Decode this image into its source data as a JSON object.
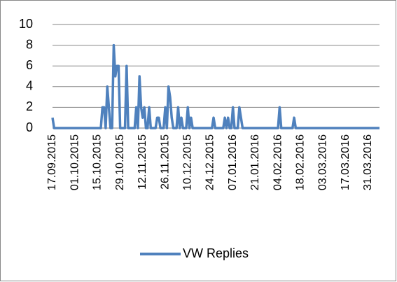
{
  "chart_data": {
    "type": "line",
    "categories": [
      "17.09.2015",
      null,
      null,
      null,
      null,
      null,
      null,
      null,
      null,
      null,
      null,
      null,
      null,
      null,
      "01.10.2015",
      null,
      null,
      null,
      null,
      null,
      null,
      null,
      null,
      null,
      null,
      null,
      null,
      null,
      "15.10.2015",
      null,
      null,
      null,
      null,
      null,
      null,
      null,
      null,
      null,
      null,
      null,
      null,
      null,
      "29.10.2015",
      null,
      null,
      null,
      null,
      null,
      null,
      null,
      null,
      null,
      null,
      null,
      null,
      null,
      "12.11.2015",
      null,
      null,
      null,
      null,
      null,
      null,
      null,
      null,
      null,
      null,
      null,
      null,
      null,
      "26.11.2015",
      null,
      null,
      null,
      null,
      null,
      null,
      null,
      null,
      null,
      null,
      null,
      null,
      null,
      "10.12.2015",
      null,
      null,
      null,
      null,
      null,
      null,
      null,
      null,
      null,
      null,
      null,
      null,
      null,
      "24.12.2015",
      null,
      null,
      null,
      null,
      null,
      null,
      null,
      null,
      null,
      null,
      null,
      null,
      null,
      "07.01.2016",
      null,
      null,
      null,
      null,
      null,
      null,
      null,
      null,
      null,
      null,
      null,
      null,
      null,
      "21.01.2016",
      null,
      null,
      null,
      null,
      null,
      null,
      null,
      null,
      null,
      null,
      null,
      null,
      null,
      "04.02.2016",
      null,
      null,
      null,
      null,
      null,
      null,
      null,
      null,
      null,
      null,
      null,
      null,
      null,
      "18.02.2016",
      null,
      null,
      null,
      null,
      null,
      null,
      null,
      null,
      null,
      null,
      null,
      null,
      null,
      "03.03.2016",
      null,
      null,
      null,
      null,
      null,
      null,
      null,
      null,
      null,
      null,
      null,
      null,
      null,
      "17.03.2016",
      null,
      null,
      null,
      null,
      null,
      null,
      null,
      null,
      null,
      null,
      null,
      null,
      null,
      "31.03.2016",
      null,
      null,
      null,
      null,
      null,
      null,
      null
    ],
    "series": [
      {
        "name": "VW Replies",
        "color": "#4f81bd",
        "values": [
          1,
          0,
          0,
          0,
          0,
          0,
          0,
          0,
          0,
          0,
          0,
          0,
          0,
          0,
          0,
          0,
          0,
          0,
          0,
          0,
          0,
          0,
          0,
          0,
          0,
          0,
          0,
          0,
          0,
          0,
          0,
          2,
          2,
          0,
          4,
          2,
          0,
          0,
          8,
          5,
          6,
          6,
          0,
          0,
          0,
          0,
          6,
          0,
          0,
          0,
          0,
          0,
          2,
          0,
          5,
          2,
          1,
          2,
          0,
          0,
          2,
          0,
          0,
          0,
          0,
          1,
          1,
          0,
          0,
          0,
          2,
          0,
          4,
          3,
          1,
          0,
          0,
          0,
          2,
          0,
          1,
          0,
          0,
          0,
          2,
          0,
          1,
          0,
          0,
          0,
          0,
          0,
          0,
          0,
          0,
          0,
          0,
          0,
          0,
          0,
          1,
          0,
          0,
          0,
          0,
          0,
          0,
          1,
          0,
          1,
          0,
          0,
          2,
          0,
          0,
          0,
          2,
          1,
          0,
          0,
          0,
          0,
          0,
          0,
          0,
          0,
          0,
          0,
          0,
          0,
          0,
          0,
          0,
          0,
          0,
          0,
          0,
          0,
          0,
          0,
          0,
          2,
          0,
          0,
          0,
          0,
          0,
          0,
          0,
          0,
          1,
          0,
          0,
          0,
          0,
          0,
          0,
          0,
          0,
          0,
          0,
          0,
          0,
          0,
          0,
          0,
          0,
          0,
          0,
          0,
          0,
          0,
          0,
          0,
          0,
          0,
          0,
          0,
          0,
          0,
          0,
          0,
          0,
          0,
          0,
          0,
          0,
          0,
          0,
          0,
          0,
          0,
          0,
          0,
          0,
          0,
          0,
          0,
          0,
          0,
          0,
          0,
          0,
          0
        ]
      }
    ],
    "ylim": [
      0,
      10
    ],
    "yticks": [
      0,
      2,
      4,
      6,
      8,
      10
    ],
    "grid": true,
    "legend": "bottom"
  }
}
